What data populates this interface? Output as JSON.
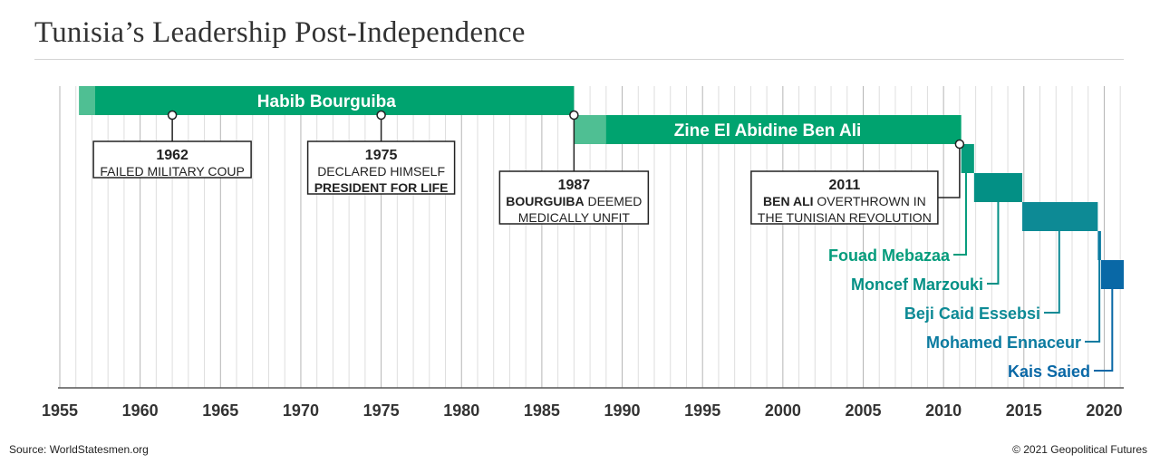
{
  "title": "Tunisia’s Leadership Post-Independence",
  "source": "Source: WorldStatesmen.org",
  "credit": "© 2021 Geopolitical Futures",
  "chart_data": {
    "type": "timeline",
    "xlim": [
      1955,
      2021.5
    ],
    "x_ticks": [
      1955,
      1960,
      1965,
      1970,
      1975,
      1980,
      1985,
      1990,
      1995,
      2000,
      2005,
      2010,
      2015,
      2020
    ],
    "tick_labels": [
      "1955",
      "1960",
      "1965",
      "1970",
      "1975",
      "1980",
      "1985",
      "1990",
      "1995",
      "2000",
      "2005",
      "2010",
      "2015",
      "2020"
    ],
    "grid": "yearly vertical lines",
    "leaders": [
      {
        "name": "Habib Bourguiba",
        "start": 1956.2,
        "end": 1987.0,
        "color": "#00a36f",
        "light_until": 1957.2,
        "light_color": "#4fbf93",
        "label_position": "inside"
      },
      {
        "name": "Zine El Abidine Ben Ali",
        "start": 1987.0,
        "end": 2011.1,
        "color": "#00a36f",
        "light_until": 1989.0,
        "light_color": "#4fbf93",
        "label_position": "inside"
      },
      {
        "name": "Fouad Mebazaa",
        "start": 2011.1,
        "end": 2011.9,
        "color": "#059c7c",
        "label_position": "below-left"
      },
      {
        "name": "Moncef Marzouki",
        "start": 2011.9,
        "end": 2014.9,
        "color": "#039085",
        "label_position": "below-left"
      },
      {
        "name": "Beji Caid Essebsi",
        "start": 2014.9,
        "end": 2019.6,
        "color": "#0d8a95",
        "label_position": "below-left"
      },
      {
        "name": "Mohamed Ennaceur",
        "start": 2019.6,
        "end": 2019.8,
        "color": "#0b7ba0",
        "label_position": "below-left"
      },
      {
        "name": "Kais Saied",
        "start": 2019.8,
        "end": 2021.5,
        "color": "#0968a6",
        "label_position": "below-left"
      }
    ],
    "events": [
      {
        "year": 1962,
        "lines": [
          [
            {
              "t": "FAILED MILITARY COUP",
              "b": false
            }
          ]
        ]
      },
      {
        "year": 1975,
        "lines": [
          [
            {
              "t": "DECLARED HIMSELF",
              "b": false
            }
          ],
          [
            {
              "t": "PRESIDENT FOR LIFE",
              "b": true
            }
          ]
        ]
      },
      {
        "year": 1987,
        "lines": [
          [
            {
              "t": "BOURGUIBA",
              "b": true
            },
            {
              "t": " DEEMED",
              "b": false
            }
          ],
          [
            {
              "t": "MEDICALLY UNFIT",
              "b": false
            }
          ]
        ]
      },
      {
        "year": 2011,
        "lines": [
          [
            {
              "t": "BEN ALI",
              "b": true
            },
            {
              "t": " OVERTHROWN IN",
              "b": false
            }
          ],
          [
            {
              "t": "THE TUNISIAN REVOLUTION",
              "b": false
            }
          ]
        ]
      }
    ]
  }
}
